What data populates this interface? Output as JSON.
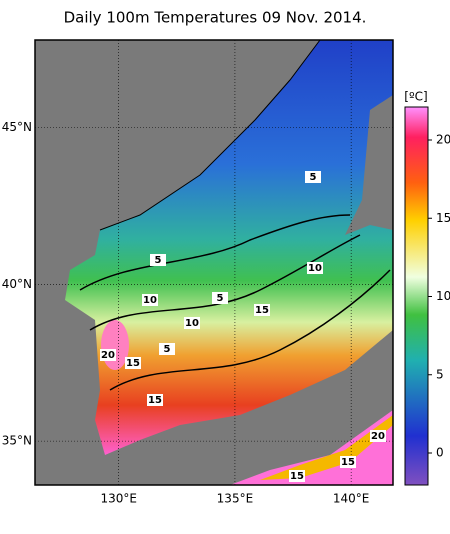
{
  "map": {
    "title": "Daily 100m Temperatures 09 Nov. 2014.",
    "lat_ticks": [
      {
        "value": 45,
        "label": "45°N"
      },
      {
        "value": 40,
        "label": "40°N"
      },
      {
        "value": 35,
        "label": "35°N"
      }
    ],
    "lon_ticks": [
      {
        "value": 130,
        "label": "130°E"
      },
      {
        "value": 135,
        "label": "135°E"
      },
      {
        "value": 140,
        "label": "140°E"
      }
    ],
    "colorbar": {
      "label": "[ºC]",
      "ticks": [
        0,
        5,
        10,
        15,
        20
      ]
    },
    "contour_labels": [
      "5",
      "5",
      "10",
      "10",
      "5",
      "10",
      "15",
      "20",
      "15",
      "5",
      "15",
      "20",
      "15",
      "15"
    ]
  }
}
